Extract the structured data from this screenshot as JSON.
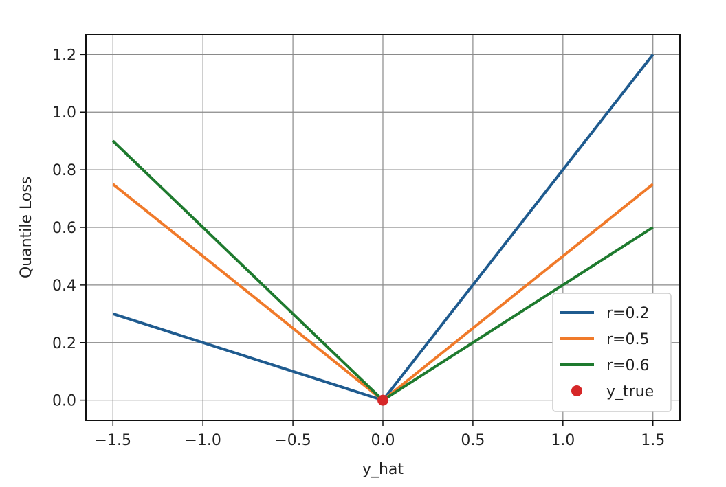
{
  "chart_data": {
    "type": "line",
    "title": "",
    "xlabel": "y_hat",
    "ylabel": "Quantile Loss",
    "xlim": [
      -1.65,
      1.65
    ],
    "ylim": [
      -0.07,
      1.27
    ],
    "xticks": [
      -1.5,
      -1.0,
      -0.5,
      0.0,
      0.5,
      1.0,
      1.5
    ],
    "xtick_labels": [
      "−1.5",
      "−1.0",
      "−0.5",
      "0.0",
      "0.5",
      "1.0",
      "1.5"
    ],
    "yticks": [
      0.0,
      0.2,
      0.4,
      0.6,
      0.8,
      1.0,
      1.2
    ],
    "ytick_labels": [
      "0.0",
      "0.2",
      "0.4",
      "0.6",
      "0.8",
      "1.0",
      "1.2"
    ],
    "grid": true,
    "legend_position": "lower-right",
    "series": [
      {
        "name": "r=0.2",
        "color": "#1f5b8f",
        "x": [
          -1.5,
          0.0,
          1.5
        ],
        "y": [
          0.3,
          0.0,
          1.2
        ]
      },
      {
        "name": "r=0.5",
        "color": "#f07a2a",
        "x": [
          -1.5,
          0.0,
          1.5
        ],
        "y": [
          0.75,
          0.0,
          0.75
        ]
      },
      {
        "name": "r=0.6",
        "color": "#1e7a2e",
        "x": [
          -1.5,
          0.0,
          1.5
        ],
        "y": [
          0.9,
          0.0,
          0.6
        ]
      }
    ],
    "scatter": {
      "name": "y_true",
      "color": "#d62728",
      "x": [
        0.0
      ],
      "y": [
        0.0
      ]
    }
  }
}
